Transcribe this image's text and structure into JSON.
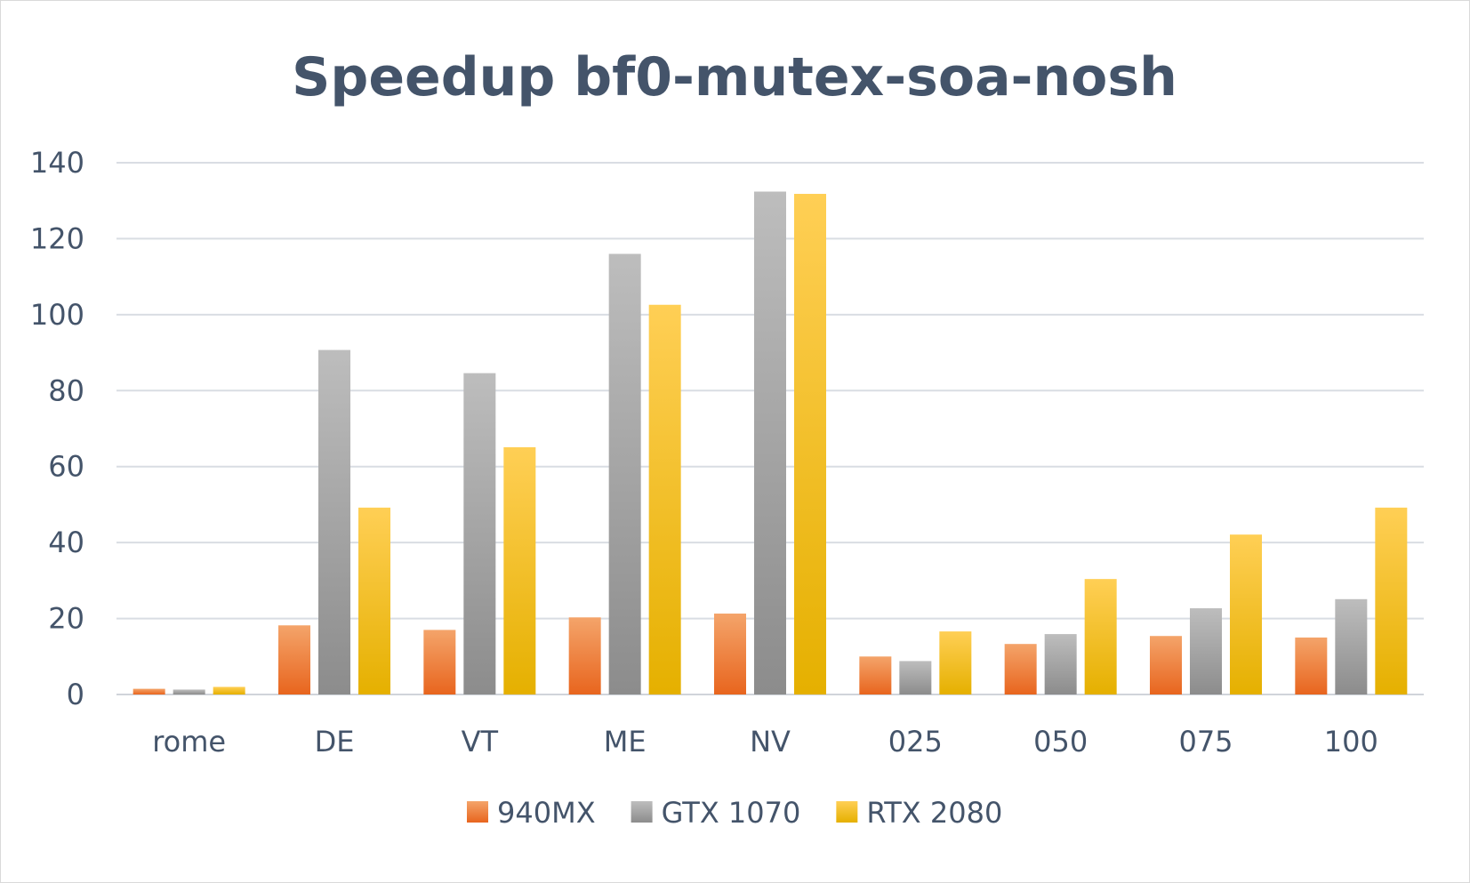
{
  "chart_data": {
    "type": "bar",
    "title": "Speedup bf0-mutex-soa-nosh",
    "xlabel": "",
    "ylabel": "",
    "categories": [
      "rome",
      "DE",
      "VT",
      "ME",
      "NV",
      "025",
      "050",
      "075",
      "100"
    ],
    "ylim": [
      0,
      140
    ],
    "yticks": [
      0,
      20,
      40,
      60,
      80,
      100,
      120,
      140
    ],
    "grid": true,
    "legend_position": "bottom",
    "series": [
      {
        "name": "940MX",
        "color_top": "#f4a46a",
        "color_bottom": "#e8651e",
        "values": [
          1.5,
          18.2,
          17.0,
          20.3,
          21.3,
          10.0,
          13.3,
          15.4,
          15.0
        ]
      },
      {
        "name": "GTX 1070",
        "color_top": "#bdbdbd",
        "color_bottom": "#8c8c8c",
        "values": [
          1.3,
          90.7,
          84.6,
          116.0,
          132.4,
          8.8,
          15.9,
          22.7,
          25.1
        ]
      },
      {
        "name": "RTX 2080",
        "color_top": "#ffcf55",
        "color_bottom": "#e5b000",
        "values": [
          2.0,
          49.2,
          65.1,
          102.6,
          131.8,
          16.6,
          30.4,
          42.1,
          49.2
        ]
      }
    ]
  }
}
